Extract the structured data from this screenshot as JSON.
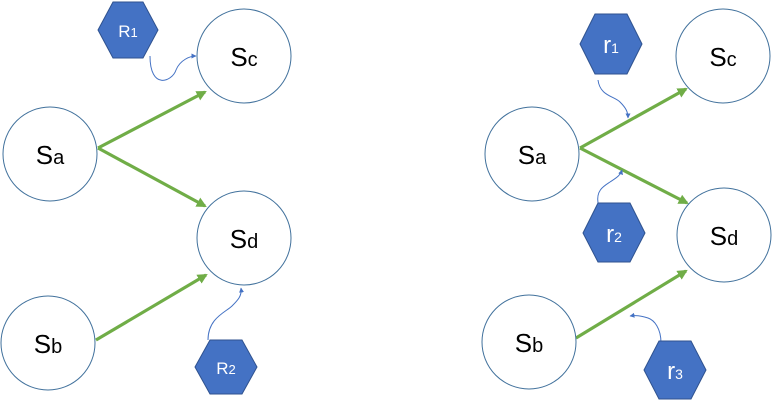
{
  "left": {
    "states": {
      "sa": {
        "base": "S",
        "sub": "a"
      },
      "sb": {
        "base": "S",
        "sub": "b"
      },
      "sc": {
        "base": "S",
        "sub": "c"
      },
      "sd": {
        "base": "S",
        "sub": "d"
      }
    },
    "resources": {
      "r1": {
        "base": "R",
        "sub": "1"
      },
      "r2": {
        "base": "R",
        "sub": "2"
      }
    }
  },
  "right": {
    "states": {
      "sa": {
        "base": "S",
        "sub": "a"
      },
      "sb": {
        "base": "S",
        "sub": "b"
      },
      "sc": {
        "base": "S",
        "sub": "c"
      },
      "sd": {
        "base": "S",
        "sub": "d"
      }
    },
    "resources": {
      "r1": {
        "base": "r",
        "sub": "1"
      },
      "r2": {
        "base": "r",
        "sub": "2"
      },
      "r3": {
        "base": "r",
        "sub": "3"
      }
    }
  },
  "colors": {
    "edge": "#70AD47",
    "hexagon": "#4472C4",
    "node_stroke": "#41719C"
  }
}
